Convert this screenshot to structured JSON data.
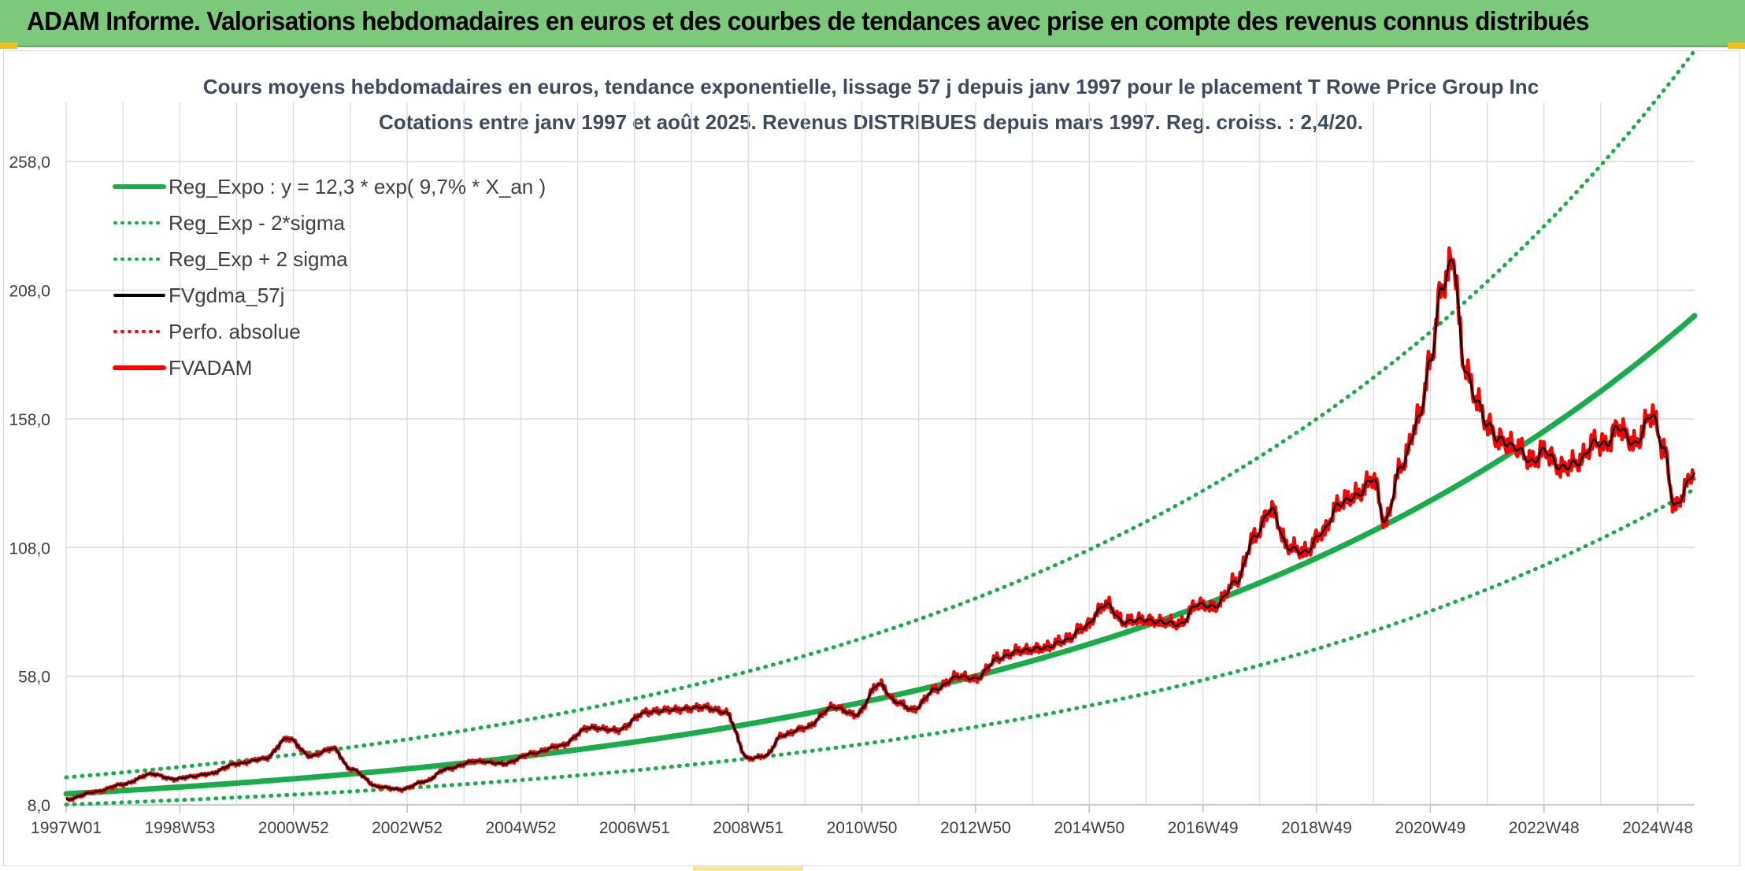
{
  "header": {
    "title": "ADAM Informe. Valorisations hebdomadaires en euros et des courbes de tendances avec prise en compte des revenus connus distribués"
  },
  "colors": {
    "banner": "#7dc97c",
    "trend": "#1aab4b",
    "price": "#ff0000",
    "smooth": "#000000",
    "grid": "#d9d9d9"
  },
  "chart_data": {
    "type": "line",
    "title": "Cours moyens hebdomadaires en euros, tendance exponentielle, lissage 57 j depuis janv 1997 pour le placement T Rowe Price Group Inc",
    "subtitle": "Cotations entre janv 1997 et août 2025. Revenus DISTRIBUES depuis mars 1997. Reg. croiss. : 2,4/20.",
    "xlabel": "",
    "ylabel": "",
    "ylim": [
      8,
      281
    ],
    "y_ticks": [
      "258,0",
      "208,0",
      "158,0",
      "108,0",
      "58,0",
      "8,0"
    ],
    "y_tick_values": [
      258,
      208,
      158,
      108,
      58,
      8
    ],
    "x_ticks": [
      "1997W01",
      "1998W53",
      "2000W52",
      "2002W52",
      "2004W52",
      "2006W51",
      "2008W51",
      "2010W50",
      "2012W50",
      "2014W50",
      "2016W49",
      "2018W49",
      "2020W49",
      "2022W48",
      "2024W48"
    ],
    "x_tick_years": [
      1997.0,
      1999.0,
      2001.0,
      2003.0,
      2005.0,
      2007.0,
      2009.0,
      2011.0,
      2013.0,
      2015.0,
      2017.0,
      2019.0,
      2021.0,
      2023.0,
      2025.0
    ],
    "x_range_years": [
      1997.0,
      2025.65
    ],
    "legend_position": "top-left",
    "legend": [
      {
        "name": "Reg_Expo : y = 12,3 * exp( 9,7% *  X_an )",
        "color": "#1aab4b",
        "style": "solid"
      },
      {
        "name": "Reg_Exp - 2*sigma",
        "color": "#1aab4b",
        "style": "dotted"
      },
      {
        "name": "Reg_Exp + 2 sigma",
        "color": "#1aab4b",
        "style": "dotted"
      },
      {
        "name": "FVgdma_57j",
        "color": "#000000",
        "style": "solid"
      },
      {
        "name": "Perfo. absolue",
        "color": "#ff0000",
        "style": "dotted"
      },
      {
        "name": "FVADAM",
        "color": "#ff0000",
        "style": "solid"
      }
    ],
    "regression": {
      "a": 12.3,
      "rate": 0.097,
      "lower_factor": 0.66,
      "upper_factor": 1.52
    },
    "series_points": {
      "x": [
        1997.0,
        1997.5,
        1998.0,
        1998.5,
        1998.9,
        1999.2,
        1999.5,
        2000.0,
        2000.5,
        2000.9,
        2001.3,
        2001.7,
        2002.0,
        2002.5,
        2002.9,
        2003.3,
        2003.7,
        2004.2,
        2004.7,
        2005.2,
        2005.7,
        2006.2,
        2006.7,
        2007.2,
        2007.7,
        2008.2,
        2008.6,
        2009.0,
        2009.3,
        2009.6,
        2010.0,
        2010.5,
        2010.9,
        2011.3,
        2011.6,
        2011.9,
        2012.3,
        2012.7,
        2013.0,
        2013.4,
        2013.8,
        2014.2,
        2014.6,
        2014.9,
        2015.3,
        2015.6,
        2015.9,
        2016.3,
        2016.6,
        2016.9,
        2017.2,
        2017.6,
        2017.9,
        2018.2,
        2018.5,
        2018.8,
        2019.1,
        2019.4,
        2019.7,
        2020.0,
        2020.2,
        2020.5,
        2020.8,
        2021.0,
        2021.2,
        2021.4,
        2021.6,
        2021.8,
        2022.0,
        2022.2,
        2022.5,
        2022.8,
        2023.0,
        2023.3,
        2023.6,
        2023.9,
        2024.1,
        2024.3,
        2024.6,
        2024.9,
        2025.1,
        2025.3,
        2025.65
      ],
      "y": [
        10,
        13,
        16,
        20,
        18,
        19,
        20,
        24,
        26,
        34,
        27,
        30,
        22,
        15,
        14,
        17,
        22,
        25,
        24,
        28,
        31,
        38,
        37,
        44,
        45,
        46,
        44,
        26,
        27,
        35,
        38,
        46,
        43,
        55,
        48,
        45,
        53,
        58,
        57,
        65,
        68,
        69,
        72,
        77,
        86,
        79,
        80,
        79,
        78,
        86,
        85,
        95,
        112,
        123,
        108,
        106,
        114,
        125,
        128,
        135,
        118,
        140,
        158,
        180,
        209,
        220,
        178,
        166,
        156,
        150,
        147,
        141,
        146,
        139,
        141,
        149,
        148,
        155,
        148,
        160,
        147,
        124,
        137
      ]
    }
  }
}
